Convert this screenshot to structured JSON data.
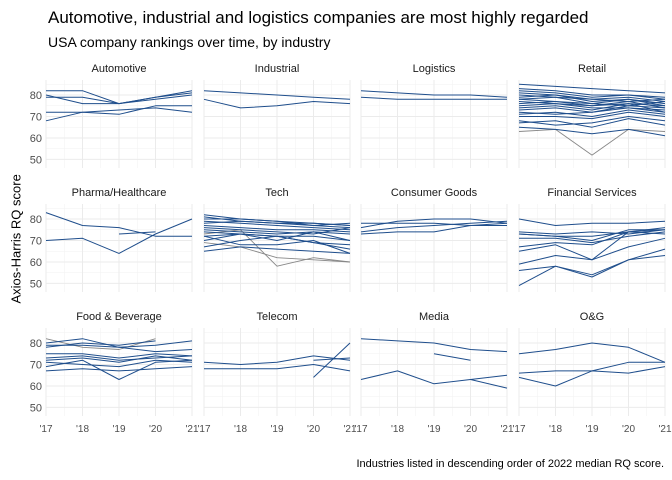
{
  "chart_data": {
    "type": "line",
    "title": "Automotive, industrial and logistics companies are most highly regarded",
    "subtitle": "USA company rankings over time, by industry",
    "ylabel": "Axios-Harris RQ score",
    "caption": "Industries listed in descending order of 2022 median RQ score.",
    "x_ticks": [
      "'17",
      "'18",
      "'19",
      "'20",
      "'21"
    ],
    "x_values": [
      2017,
      2018,
      2019,
      2020,
      2021
    ],
    "y_ticks": [
      50,
      60,
      70,
      80
    ],
    "ylim": [
      46,
      87
    ],
    "colors": {
      "series": "#1f4e8c",
      "highlight": "#888888",
      "panel_bg": "#ffffff",
      "grid": "#ebebeb"
    },
    "panels": [
      {
        "name": "Automotive",
        "series": [
          [
            82,
            82,
            76,
            79,
            82
          ],
          [
            80,
            76,
            76,
            79,
            81
          ],
          [
            79,
            79,
            76,
            78,
            80
          ],
          [
            68,
            72,
            71,
            75,
            75
          ],
          [
            72,
            72,
            73,
            74,
            72
          ]
        ]
      },
      {
        "name": "Industrial",
        "series": [
          [
            82,
            81,
            80,
            79,
            78
          ],
          [
            78,
            74,
            75,
            77,
            76
          ]
        ]
      },
      {
        "name": "Logistics",
        "series": [
          [
            82,
            81,
            80,
            80,
            79
          ],
          [
            79,
            78,
            78,
            78,
            78
          ]
        ]
      },
      {
        "name": "Retail",
        "series": [
          [
            85,
            84,
            83,
            82,
            81
          ],
          [
            83,
            82,
            80,
            80,
            79
          ],
          [
            82,
            81,
            79,
            80,
            78
          ],
          [
            81,
            80,
            78,
            79,
            77
          ],
          [
            80,
            79,
            78,
            77,
            78
          ],
          [
            79,
            80,
            77,
            78,
            76
          ],
          [
            78,
            79,
            76,
            75,
            77
          ],
          [
            78,
            77,
            76,
            78,
            75
          ],
          [
            77,
            76,
            75,
            77,
            74
          ],
          [
            76,
            77,
            75,
            76,
            75
          ],
          [
            75,
            76,
            74,
            74,
            73
          ],
          [
            74,
            75,
            73,
            76,
            72
          ],
          [
            73,
            74,
            72,
            75,
            74
          ],
          [
            72,
            71,
            72,
            74,
            72
          ],
          [
            71,
            72,
            70,
            73,
            71
          ],
          [
            70,
            70,
            69,
            72,
            70
          ],
          [
            68,
            66,
            67,
            70,
            68
          ],
          [
            67,
            68,
            65,
            69,
            66
          ],
          [
            65,
            64,
            62,
            64,
            61
          ],
          {
            "values": [
              63,
              64,
              52,
              64,
              63
            ],
            "highlight": true
          }
        ]
      },
      {
        "name": "Pharma/Healthcare",
        "series": [
          [
            83,
            77,
            76,
            72,
            72
          ],
          [
            70,
            71,
            64,
            73,
            80
          ],
          [
            null,
            null,
            73,
            74,
            null
          ]
        ]
      },
      {
        "name": "Tech",
        "series": [
          [
            82,
            80,
            79,
            78,
            77
          ],
          [
            81,
            79,
            78,
            77,
            76
          ],
          [
            80,
            80,
            79,
            77,
            78
          ],
          [
            79,
            78,
            77,
            76,
            75
          ],
          [
            78,
            79,
            78,
            78,
            77
          ],
          [
            77,
            76,
            75,
            75,
            74
          ],
          [
            76,
            75,
            74,
            73,
            76
          ],
          [
            75,
            74,
            73,
            74,
            73
          ],
          [
            74,
            73,
            72,
            72,
            70
          ],
          [
            72,
            73,
            70,
            74,
            70
          ],
          [
            70,
            73,
            72,
            69,
            68
          ],
          [
            67,
            70,
            72,
            69,
            66
          ],
          [
            72,
            68,
            68,
            70,
            64
          ],
          [
            65,
            67,
            66,
            65,
            64
          ],
          {
            "values": [
              73,
              75,
              58,
              62,
              60
            ],
            "highlight": true
          },
          {
            "values": [
              69,
              67,
              62,
              61,
              60
            ],
            "highlight": true
          }
        ]
      },
      {
        "name": "Consumer Goods",
        "series": [
          [
            78,
            78,
            78,
            77,
            78
          ],
          [
            76,
            79,
            80,
            80,
            78
          ],
          [
            74,
            76,
            77,
            78,
            79
          ],
          [
            73,
            74,
            74,
            77,
            77
          ]
        ]
      },
      {
        "name": "Financial Services",
        "series": [
          [
            80,
            77,
            78,
            78,
            79
          ],
          [
            74,
            73,
            74,
            73,
            75
          ],
          [
            73,
            72,
            72,
            74,
            73
          ],
          [
            73,
            72,
            70,
            75,
            75
          ],
          [
            71,
            71,
            69,
            72,
            74
          ],
          [
            67,
            69,
            68,
            74,
            76
          ],
          [
            65,
            68,
            61,
            74,
            75
          ],
          [
            59,
            63,
            61,
            67,
            71
          ],
          [
            56,
            58,
            53,
            61,
            63
          ],
          [
            49,
            58,
            54,
            61,
            66
          ]
        ]
      },
      {
        "name": "Food & Beverage",
        "series": [
          [
            80,
            82,
            78,
            79,
            81
          ],
          [
            78,
            80,
            79,
            81,
            null
          ],
          [
            79,
            79,
            78,
            76,
            77
          ],
          [
            75,
            75,
            73,
            75,
            74
          ],
          [
            73,
            74,
            72,
            73,
            74
          ],
          [
            72,
            73,
            71,
            74,
            72
          ],
          [
            71,
            70,
            69,
            72,
            71
          ],
          [
            69,
            72,
            63,
            71,
            72
          ],
          [
            67,
            68,
            67,
            68,
            69
          ],
          {
            "values": [
              82,
              78,
              77,
              82,
              null
            ],
            "highlight": true
          }
        ]
      },
      {
        "name": "Telecom",
        "series": [
          [
            71,
            70,
            71,
            74,
            72
          ],
          [
            68,
            68,
            68,
            70,
            67
          ],
          [
            null,
            null,
            null,
            64,
            80
          ],
          [
            null,
            null,
            null,
            72,
            73
          ]
        ]
      },
      {
        "name": "Media",
        "series": [
          [
            82,
            81,
            80,
            77,
            76
          ],
          [
            null,
            null,
            75,
            72,
            null
          ],
          [
            63,
            67,
            61,
            63,
            65
          ],
          [
            null,
            null,
            null,
            63,
            59
          ]
        ]
      },
      {
        "name": "O&G",
        "series": [
          [
            75,
            77,
            80,
            78,
            71
          ],
          [
            66,
            67,
            67,
            71,
            71
          ],
          [
            64,
            60,
            67,
            66,
            69
          ]
        ]
      }
    ]
  }
}
